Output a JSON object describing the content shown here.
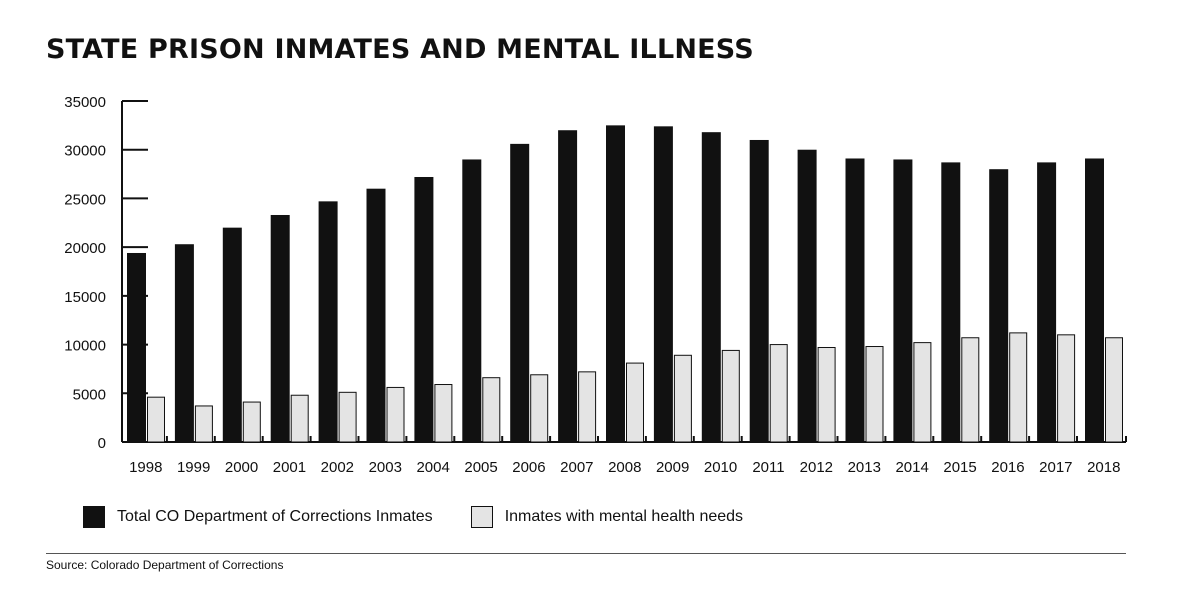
{
  "chart_data": {
    "type": "bar",
    "title": "STATE PRISON INMATES AND MENTAL ILLNESS",
    "xlabel": "",
    "ylabel": "",
    "ylim": [
      0,
      35000
    ],
    "yticks": [
      0,
      5000,
      10000,
      15000,
      20000,
      25000,
      30000,
      35000
    ],
    "categories": [
      "1998",
      "1999",
      "2000",
      "2001",
      "2002",
      "2003",
      "2004",
      "2005",
      "2006",
      "2007",
      "2008",
      "2009",
      "2010",
      "2011",
      "2012",
      "2013",
      "2014",
      "2015",
      "2016",
      "2017",
      "2018"
    ],
    "series": [
      {
        "name": "Total CO Department of Corrections Inmates",
        "color": "#111111",
        "values": [
          19400,
          20300,
          22000,
          23300,
          24700,
          26000,
          27200,
          29000,
          30600,
          32000,
          32500,
          32400,
          31800,
          31000,
          30000,
          29100,
          29000,
          28700,
          28000,
          28700,
          29100
        ]
      },
      {
        "name": "Inmates with mental health needs",
        "color": "#e4e4e4",
        "values": [
          4600,
          3700,
          4100,
          4800,
          5100,
          5600,
          5900,
          6600,
          6900,
          7200,
          8100,
          8900,
          9400,
          10000,
          9700,
          9800,
          10200,
          10700,
          11200,
          11000,
          10700
        ]
      }
    ],
    "grid": false,
    "legend_position": "bottom-left"
  },
  "source": "Source: Colorado Department of Corrections"
}
